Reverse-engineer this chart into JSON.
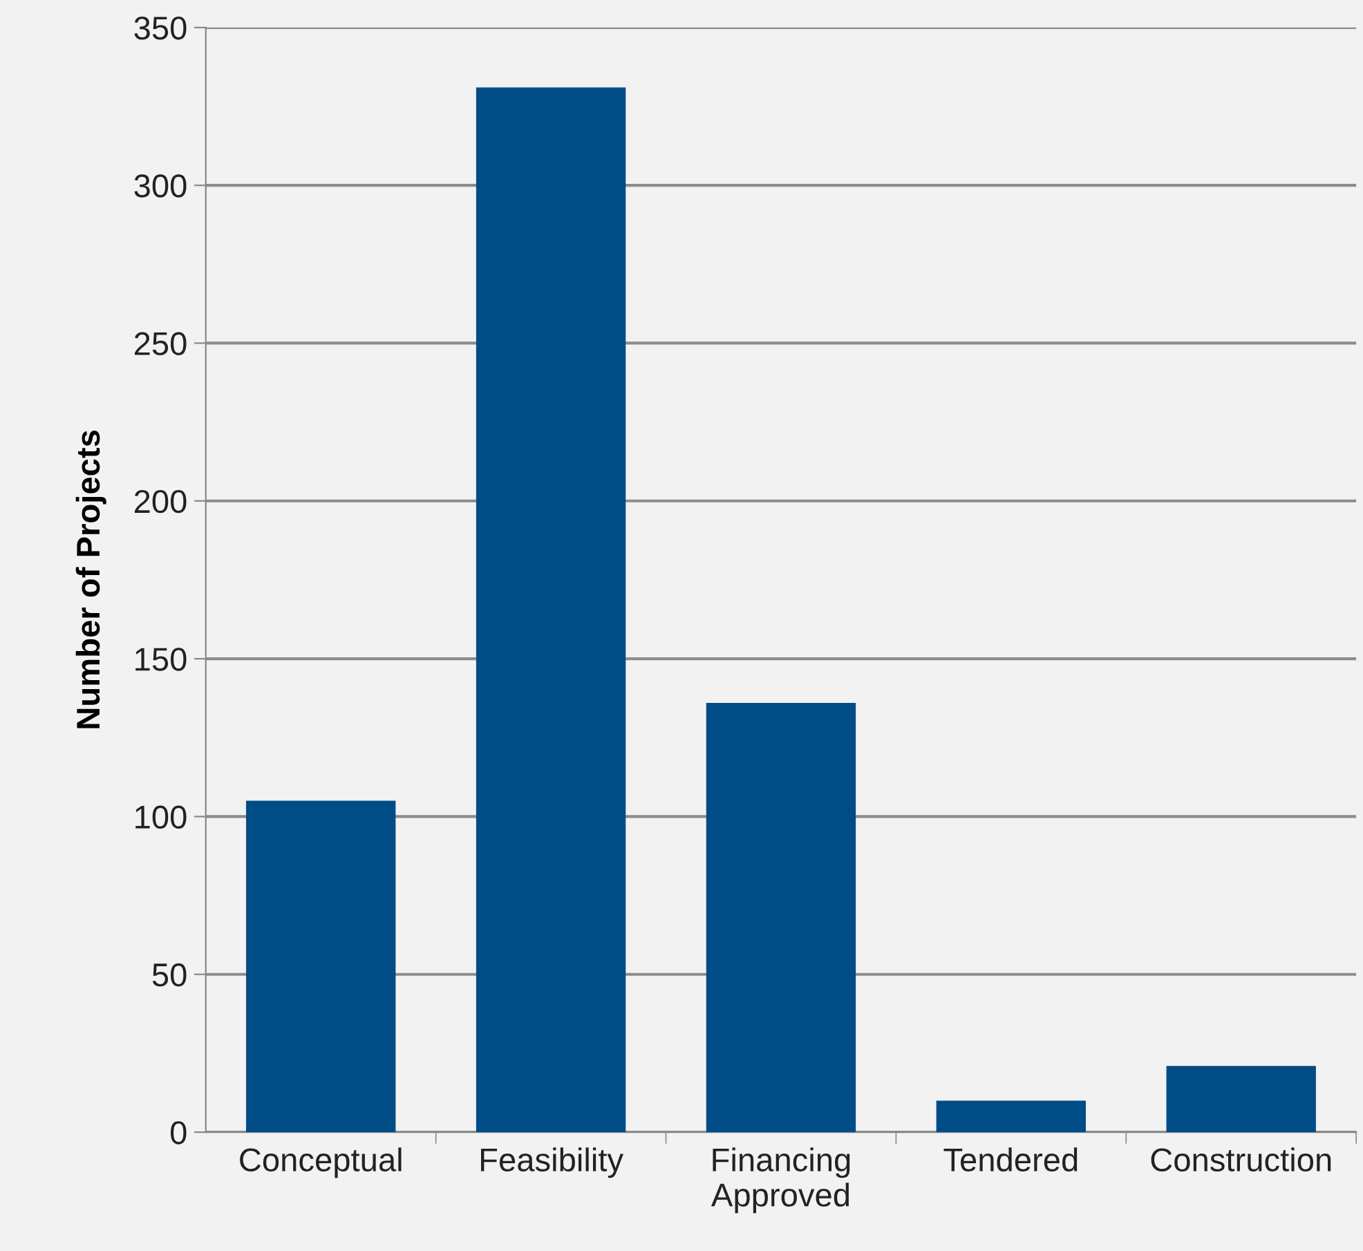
{
  "chart_data": {
    "type": "bar",
    "ylabel": "Number of Projects",
    "categories": [
      "Conceptual",
      "Feasibility",
      "Financing\nApproved",
      "Tendered",
      "Construction"
    ],
    "values": [
      105,
      331,
      136,
      10,
      21
    ],
    "color": "#004c87",
    "ylim": [
      0,
      350
    ],
    "yticks": [
      0,
      50,
      100,
      150,
      200,
      250,
      300,
      350
    ],
    "grid": "y",
    "legend": false
  }
}
